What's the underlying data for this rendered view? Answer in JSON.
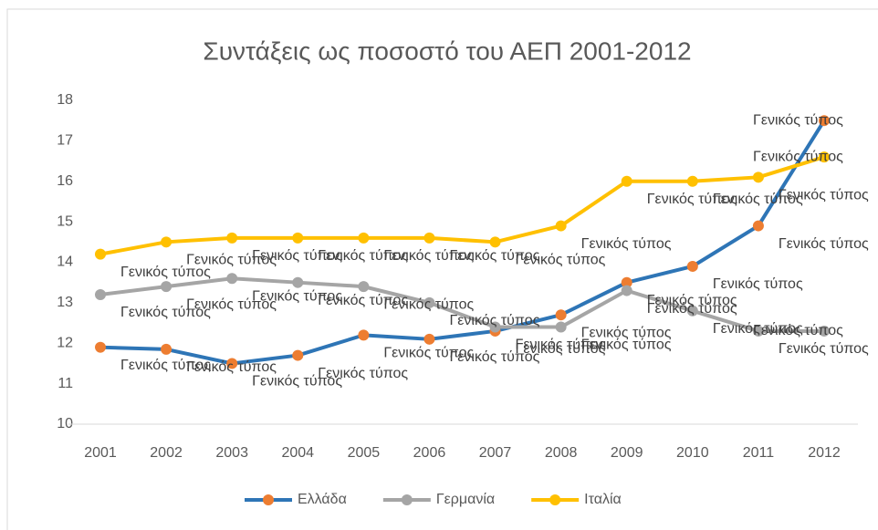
{
  "chart_data": {
    "type": "line",
    "title": "Συντάξεις ως ποσοστό του ΑΕΠ 2001-2012",
    "categories": [
      "2001",
      "2002",
      "2003",
      "2004",
      "2005",
      "2006",
      "2007",
      "2008",
      "2009",
      "2010",
      "2011",
      "2012"
    ],
    "series": [
      {
        "name": "Ελλάδα",
        "color": "#2e75b6",
        "marker_color": "#ed7d31",
        "values": [
          11.9,
          11.85,
          11.5,
          11.7,
          12.2,
          12.1,
          12.3,
          12.7,
          13.5,
          13.9,
          14.9,
          17.5
        ],
        "labels": [
          "Γενικός τύπος",
          "Γενικός τύπος",
          "Γενικός τύπος",
          "Γενικός τύπος",
          "Γενικός τύπος",
          "Γενικός τύπος",
          "Γενικός τύπος",
          "Γενικός τύπος",
          "Γενικός τύπος",
          "Γενικός τύπος",
          "Γενικός τύπος",
          "Γενικός τύπος"
        ]
      },
      {
        "name": "Γερμανία",
        "color": "#a5a5a5",
        "marker_color": "#a5a5a5",
        "values": [
          13.2,
          13.4,
          13.6,
          13.5,
          13.4,
          13.0,
          12.4,
          12.4,
          13.3,
          12.8,
          12.3,
          12.3
        ],
        "labels": [
          "Γενικός τύπος",
          "Γενικός τύπος",
          "Γενικός τύπος",
          "Γενικός τύπος",
          "Γενικός τύπος",
          "Γενικός τύπος",
          "Γενικός τύπος",
          "Γενικός τύπος",
          "Γενικός τύπος",
          "Γενικός τύπος",
          "Γενικός τύπος",
          "Γενικός τύπος"
        ]
      },
      {
        "name": "Ιταλία",
        "color": "#ffc000",
        "marker_color": "#ffc000",
        "values": [
          14.2,
          14.5,
          14.6,
          14.6,
          14.6,
          14.6,
          14.5,
          14.9,
          16.0,
          16.0,
          16.1,
          16.6
        ],
        "labels": [
          "Γενικός τύπος",
          "Γενικός τύπος",
          "Γενικός τύπος",
          "Γενικός τύπος",
          "Γενικός τύπος",
          "Γενικός τύπος",
          "Γενικός τύπος",
          "Γενικός τύπος",
          "Γενικός τύπος",
          "Γενικός τύπος",
          "Γενικός τύπος",
          "Γενικός τύπος"
        ]
      }
    ],
    "ylim": [
      10,
      18
    ],
    "yticks": [
      10,
      11,
      12,
      13,
      14,
      15,
      16,
      17,
      18
    ],
    "grid": false,
    "legend": "bottom"
  }
}
